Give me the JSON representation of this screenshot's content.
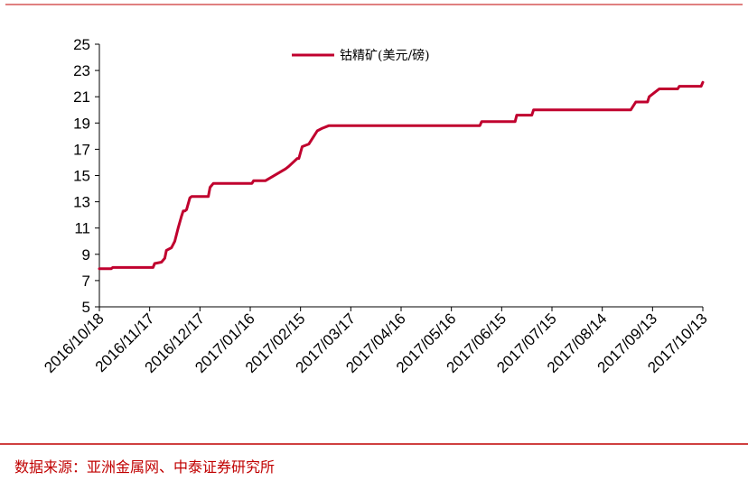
{
  "colors": {
    "series": "#c0002e",
    "source": "#c00000",
    "rule": "#c00000",
    "axis": "#000000"
  },
  "source": "数据来源：亚洲金属网、中泰证券研究所",
  "chart_data": {
    "type": "line",
    "title": "",
    "xlabel": "",
    "ylabel": "",
    "ylim": [
      5,
      25
    ],
    "yticks": [
      5,
      7,
      9,
      11,
      13,
      15,
      17,
      19,
      21,
      23,
      25
    ],
    "xlim": [
      "2016-10-18",
      "2017-10-13"
    ],
    "xtick_labels": [
      "2016/10/18",
      "2016/11/17",
      "2016/12/17",
      "2017/01/16",
      "2017/02/15",
      "2017/03/17",
      "2017/04/16",
      "2017/05/16",
      "2017/06/15",
      "2017/07/15",
      "2017/08/14",
      "2017/09/13",
      "2017/10/13"
    ],
    "xtick_dates": [
      "2016-10-18",
      "2016-11-17",
      "2016-12-17",
      "2017-01-16",
      "2017-02-15",
      "2017-03-17",
      "2017-04-16",
      "2017-05-16",
      "2017-06-15",
      "2017-07-15",
      "2017-08-14",
      "2017-09-13",
      "2017-10-13"
    ],
    "grid": false,
    "legend": "top-center",
    "series": [
      {
        "name": "钴精矿(美元/磅)",
        "x": [
          "2016-10-18",
          "2016-10-25",
          "2016-10-26",
          "2016-11-19",
          "2016-11-20",
          "2016-11-24",
          "2016-11-26",
          "2016-11-27",
          "2016-11-30",
          "2016-12-02",
          "2016-12-04",
          "2016-12-06",
          "2016-12-07",
          "2016-12-08",
          "2016-12-09",
          "2016-12-11",
          "2016-12-12",
          "2016-12-14",
          "2016-12-15",
          "2016-12-22",
          "2016-12-23",
          "2016-12-25",
          "2017-01-17",
          "2017-01-18",
          "2017-01-25",
          "2017-02-06",
          "2017-02-07",
          "2017-02-08",
          "2017-02-13",
          "2017-02-14",
          "2017-02-16",
          "2017-02-20",
          "2017-02-23",
          "2017-02-25",
          "2017-02-28",
          "2017-03-04",
          "2017-06-02",
          "2017-06-03",
          "2017-06-23",
          "2017-06-24",
          "2017-07-03",
          "2017-07-04",
          "2017-08-31",
          "2017-09-03",
          "2017-09-10",
          "2017-09-11",
          "2017-09-14",
          "2017-09-16",
          "2017-09-17",
          "2017-09-28",
          "2017-09-29",
          "2017-10-12",
          "2017-10-13"
        ],
        "values": [
          7.9,
          7.9,
          8.0,
          8.0,
          8.3,
          8.4,
          8.7,
          9.3,
          9.5,
          10.0,
          11.0,
          11.9,
          12.3,
          12.3,
          12.4,
          13.3,
          13.4,
          13.4,
          13.4,
          13.4,
          14.1,
          14.4,
          14.4,
          14.6,
          14.6,
          15.5,
          15.6,
          15.7,
          16.3,
          16.3,
          17.2,
          17.4,
          18.0,
          18.4,
          18.6,
          18.8,
          18.8,
          19.1,
          19.1,
          19.6,
          19.6,
          20.0,
          20.0,
          20.6,
          20.6,
          21.0,
          21.3,
          21.5,
          21.6,
          21.6,
          21.8,
          21.8,
          22.1
        ]
      }
    ]
  }
}
